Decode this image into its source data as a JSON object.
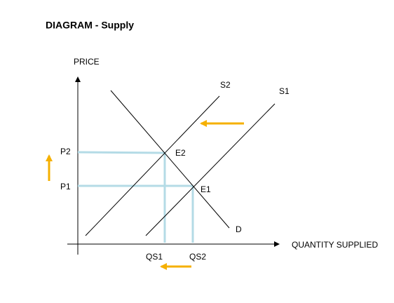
{
  "header": {
    "title": "DIAGRAM - Supply"
  },
  "axes": {
    "y_label": "PRICE",
    "x_label": "QUANTITY SUPPLIED"
  },
  "curves": {
    "s1": "S1",
    "s2": "S2",
    "d": "D"
  },
  "points": {
    "e1": "E1",
    "e2": "E2"
  },
  "prices": {
    "p1": "P1",
    "p2": "P2"
  },
  "quantities": {
    "qs1": "QS1",
    "qs2": "QS2"
  }
}
